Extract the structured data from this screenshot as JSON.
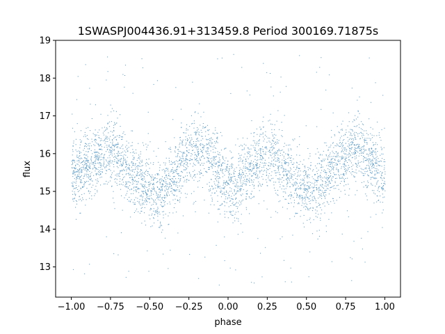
{
  "chart_data": {
    "type": "scatter",
    "title": "1SWASPJ004436.91+313459.8 Period 300169.71875s",
    "xlabel": "phase",
    "ylabel": "flux",
    "xlim": [
      -1.1,
      1.1
    ],
    "ylim": [
      12.2,
      19.0
    ],
    "xticks": [
      -1.0,
      -0.75,
      -0.5,
      -0.25,
      0.0,
      0.25,
      0.5,
      0.75,
      1.0
    ],
    "xtick_labels": [
      "−1.00",
      "−0.75",
      "−0.50",
      "−0.25",
      "0.00",
      "0.25",
      "0.50",
      "0.75",
      "1.00"
    ],
    "yticks": [
      13,
      14,
      15,
      16,
      17,
      18,
      19
    ],
    "ytick_labels": [
      "13",
      "14",
      "15",
      "16",
      "17",
      "18",
      "19"
    ],
    "grid": false,
    "legend": "none",
    "point_color": "#1f77b4",
    "series": [
      {
        "phase_range": [
          -1.0,
          1.0
        ],
        "mean_profile": {
          "phase": [
            -1.0,
            -0.9,
            -0.8,
            -0.75,
            -0.7,
            -0.6,
            -0.5,
            -0.45,
            -0.4,
            -0.3,
            -0.2,
            -0.15,
            -0.1,
            0.0,
            0.05,
            0.1,
            0.2,
            0.3,
            0.4,
            0.5,
            0.55,
            0.6,
            0.7,
            0.8,
            0.85,
            0.9,
            1.0
          ],
          "flux": [
            15.4,
            15.7,
            16.0,
            16.1,
            15.9,
            15.4,
            15.0,
            14.9,
            15.1,
            15.7,
            16.1,
            16.1,
            15.8,
            15.1,
            15.0,
            15.4,
            15.9,
            16.0,
            15.4,
            15.0,
            14.9,
            15.2,
            15.8,
            16.1,
            16.1,
            15.8,
            15.4
          ]
        },
        "scatter_sd": 0.45,
        "outlier_flux_range": [
          12.5,
          18.7
        ]
      }
    ]
  }
}
